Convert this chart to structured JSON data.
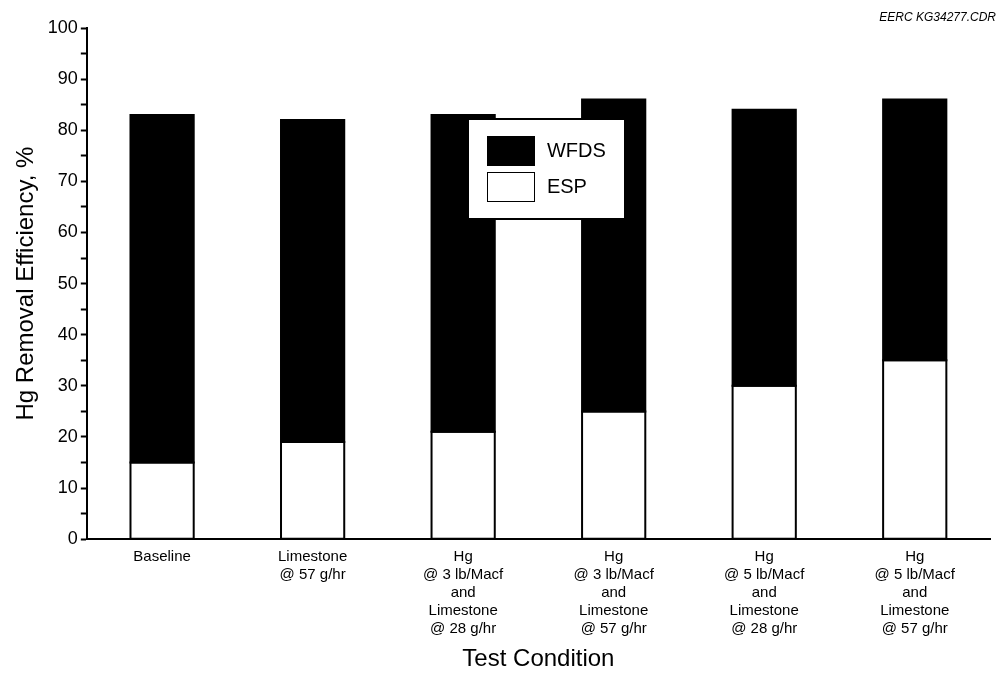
{
  "chart_data": {
    "type": "bar",
    "stacked": true,
    "xlabel": "Test Condition",
    "ylabel": "Hg Removal Efficiency, %",
    "categories": [
      "Baseline",
      "Limestone\n@ 57 g/hr",
      "Hg\n@ 3 lb/Macf\nand\nLimestone\n@ 28 g/hr",
      "Hg\n@ 3 lb/Macf\nand\nLimestone\n@ 57 g/hr",
      "Hg\n@ 5 lb/Macf\nand\nLimestone\n@ 28 g/hr",
      "Hg\n@ 5 lb/Macf\nand\nLimestone\n@ 57 g/hr"
    ],
    "series": [
      {
        "name": "ESP",
        "color": "#ffffff",
        "values": [
          15,
          19,
          21,
          25,
          30,
          35
        ]
      },
      {
        "name": "WFDS",
        "color": "#000000",
        "values": [
          68,
          63,
          62,
          61,
          54,
          51
        ]
      }
    ],
    "ylim": [
      0,
      100
    ],
    "yticks": [
      0,
      {
        "value": 5,
        "label": null
      },
      10,
      {
        "value": 15,
        "label": null
      },
      20,
      {
        "value": 25,
        "label": null
      },
      30,
      {
        "value": 35,
        "label": null
      },
      40,
      {
        "value": 45,
        "label": null
      },
      50,
      {
        "value": 55,
        "label": null
      },
      60,
      {
        "value": 65,
        "label": null
      },
      70,
      {
        "value": 75,
        "label": null
      },
      80,
      {
        "value": 85,
        "label": null
      },
      90,
      {
        "value": 95,
        "label": null
      },
      100
    ],
    "grid": false,
    "legend": "top",
    "annotations": [
      "EERC KG34277.CDR"
    ]
  }
}
